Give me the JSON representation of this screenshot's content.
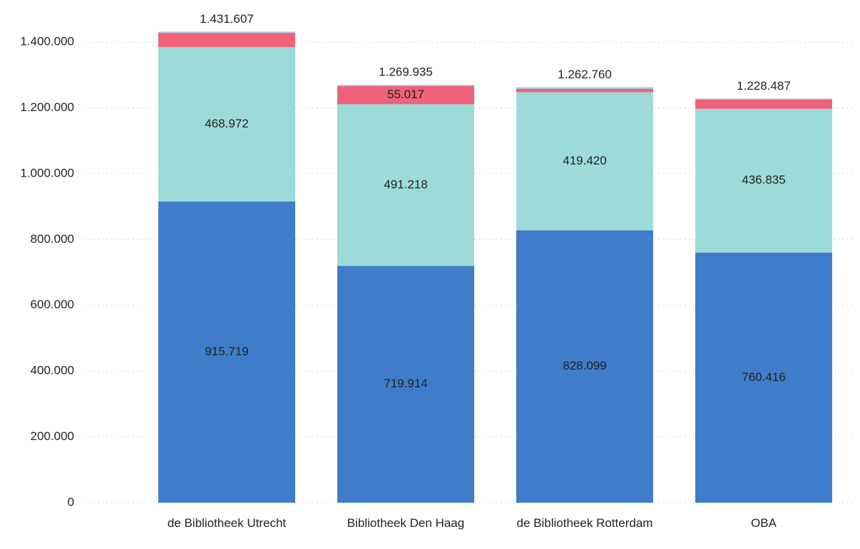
{
  "chart_data": {
    "type": "stacked_bar",
    "categories": [
      "de Bibliotheek Utrecht",
      "Bibliotheek Den Haag",
      "de Bibliotheek Rotterdam",
      "OBA"
    ],
    "series": [
      {
        "color": "#3f7dca",
        "values": [
          915719,
          719914,
          828099,
          760416
        ],
        "value_labels": [
          "915.719",
          "719.914",
          "828.099",
          "760.416"
        ]
      },
      {
        "color": "#9ddbd9",
        "values": [
          468972,
          491218,
          419420,
          436835
        ],
        "value_labels": [
          "468.972",
          "491.218",
          "419.420",
          "436.835"
        ]
      },
      {
        "color": "#f0617a",
        "values": [
          42916,
          55017,
          10000,
          28000
        ],
        "value_labels": [
          null,
          "55.017",
          null,
          null
        ]
      },
      {
        "color": "#a9c4e0",
        "values": [
          4000,
          3786,
          5241,
          3236
        ],
        "value_labels": [
          null,
          null,
          null,
          null
        ]
      }
    ],
    "totals": [
      1431607,
      1269935,
      1262760,
      1228487
    ],
    "total_labels": [
      "1.431.607",
      "1.269.935",
      "1.262.760",
      "1.228.487"
    ],
    "ylim": [
      0,
      1450000
    ],
    "yticks": [
      0,
      {
        "value": 200000,
        "label": "200.000"
      },
      {
        "value": 400000,
        "label": "400.000"
      },
      {
        "value": 600000,
        "label": "600.000"
      },
      {
        "value": 800000,
        "label": "800.000"
      },
      {
        "value": 1000000,
        "label": "1.000.000"
      },
      {
        "value": 1200000,
        "label": "1.200.000"
      },
      {
        "value": 1400000,
        "label": "1.400.000"
      }
    ],
    "grid": true
  }
}
